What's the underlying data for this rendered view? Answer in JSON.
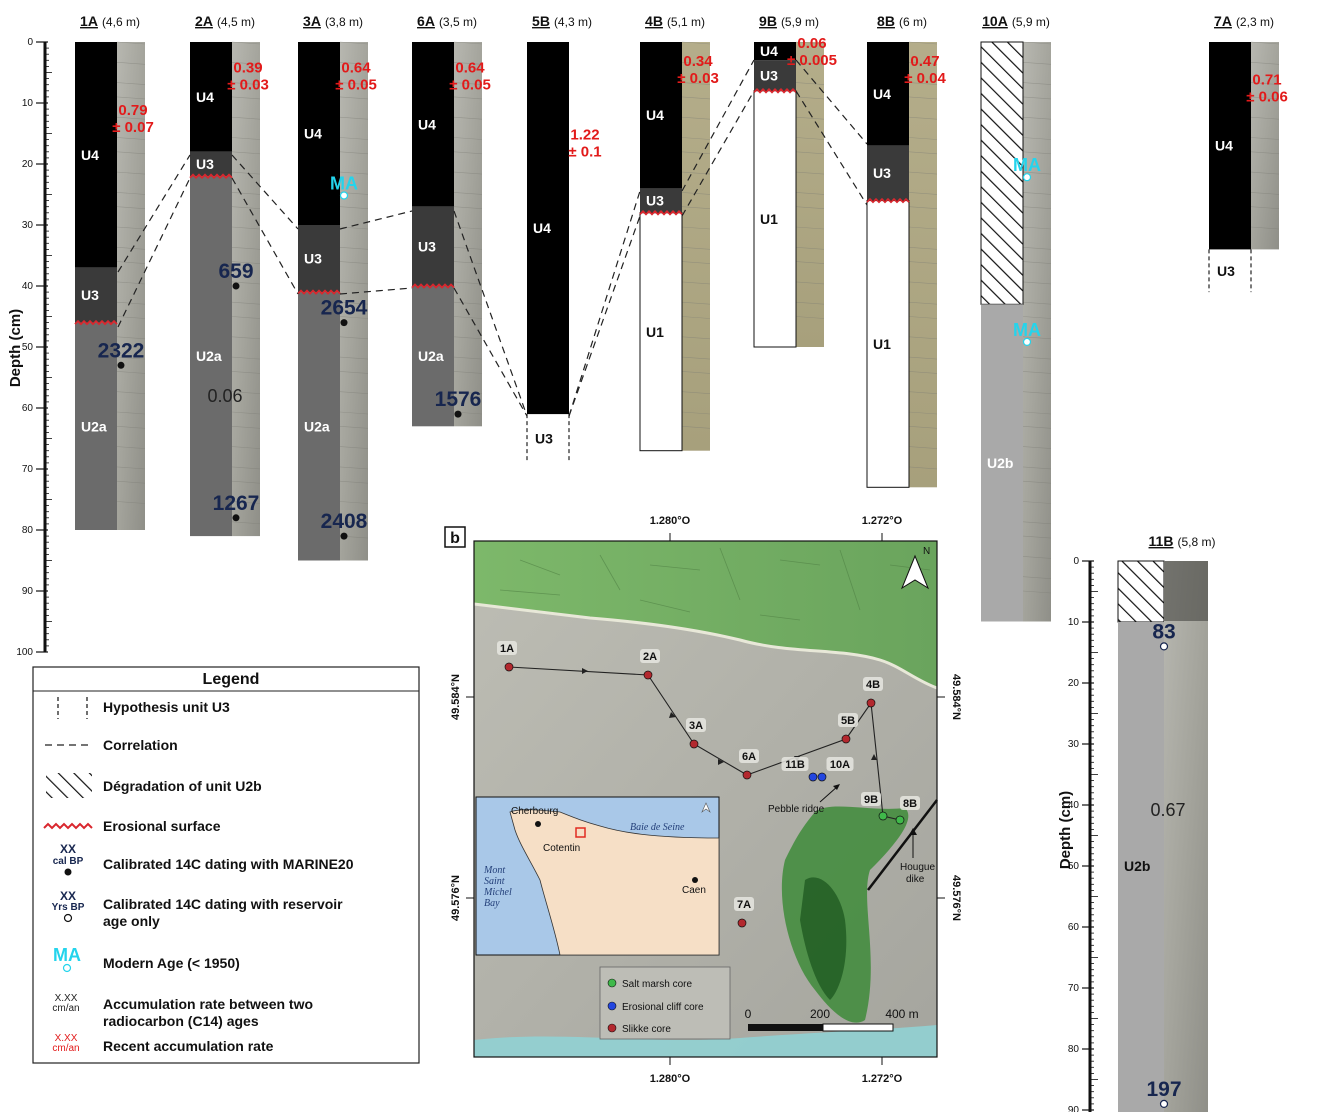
{
  "panel_b_label": "b",
  "colors": {
    "u4": "#000000",
    "u3": "#3a3a3a",
    "u2a": "#6b6b6b",
    "u2b": "#a9a9a9",
    "u1": "#ffffff",
    "erosion": "#d9272e",
    "rate_red": "#e21a1a",
    "age_navy": "#17264f",
    "modern": "#24d4ec"
  },
  "main_axis": {
    "title": "Depth (cm)",
    "ticks": [
      "0",
      "10",
      "20",
      "30",
      "40",
      "50",
      "60",
      "70",
      "80",
      "90",
      "100"
    ]
  },
  "cores": [
    {
      "id": "1A",
      "length": "(4,6 m)",
      "col_x": 75,
      "photo": true,
      "units": [
        [
          "U4",
          0,
          37
        ],
        [
          "U3",
          37,
          46
        ],
        [
          "U2a",
          46,
          80
        ]
      ],
      "erosion": 46,
      "rates": [
        {
          "text": [
            "0.79",
            "± 0.07"
          ],
          "d": 10
        }
      ],
      "ages": [
        {
          "text": "2322",
          "d": 53
        }
      ]
    },
    {
      "id": "2A",
      "length": "(4,5 m)",
      "col_x": 190,
      "photo": true,
      "units": [
        [
          "U4",
          0,
          18
        ],
        [
          "U3",
          18,
          22
        ],
        [
          "U2a",
          22,
          81
        ]
      ],
      "erosion": 22,
      "rates": [
        {
          "text": [
            "0.39",
            "± 0.03"
          ],
          "d": 3
        }
      ],
      "black_rates": [
        {
          "text": "0.06",
          "d": 59
        }
      ],
      "ages": [
        {
          "text": "659",
          "d": 40
        },
        {
          "text": "1267",
          "d": 78
        }
      ]
    },
    {
      "id": "3A",
      "length": "(3,8 m)",
      "col_x": 298,
      "photo": true,
      "units": [
        [
          "U4",
          0,
          30
        ],
        [
          "U3",
          30,
          41
        ],
        [
          "U2a",
          41,
          85
        ]
      ],
      "erosion": 41,
      "rates": [
        {
          "text": [
            "0.64",
            "± 0.05"
          ],
          "d": 3
        }
      ],
      "modern": [
        {
          "d": 25
        }
      ],
      "ages": [
        {
          "text": "2654",
          "d": 46
        },
        {
          "text": "2408",
          "d": 81
        }
      ]
    },
    {
      "id": "6A",
      "length": "(3,5 m)",
      "col_x": 412,
      "photo": true,
      "units": [
        [
          "U4",
          0,
          27
        ],
        [
          "U3",
          27,
          40
        ],
        [
          "U2a",
          40,
          63
        ]
      ],
      "erosion": 40,
      "rates": [
        {
          "text": [
            "0.64",
            "± 0.05"
          ],
          "d": 3
        }
      ],
      "ages": [
        {
          "text": "1576",
          "d": 61
        }
      ]
    },
    {
      "id": "5B",
      "length": "(4,3 m)",
      "col_x": 527,
      "photo": false,
      "units": [
        [
          "U4",
          0,
          61
        ]
      ],
      "hyp": [
        61,
        69
      ],
      "rates": [
        {
          "text": [
            "1.22",
            "± 0.1"
          ],
          "d": 14
        }
      ]
    },
    {
      "id": "4B",
      "length": "(5,1 m)",
      "col_x": 640,
      "photo": true,
      "units": [
        [
          "U4",
          0,
          24
        ],
        [
          "U3",
          24,
          28
        ],
        [
          "U1",
          28,
          67
        ]
      ],
      "erosion": 28,
      "rates": [
        {
          "text": [
            "0.34",
            "± 0.03"
          ],
          "d": 2
        }
      ]
    },
    {
      "id": "9B",
      "length": "(5,9 m)",
      "col_x": 754,
      "photo": true,
      "units": [
        [
          "U4",
          0,
          3
        ],
        [
          "U3",
          3,
          8
        ],
        [
          "U1",
          8,
          50
        ]
      ],
      "erosion": 8,
      "rates": [
        {
          "text": [
            "0.06",
            "± 0.005"
          ],
          "d": -1
        }
      ]
    },
    {
      "id": "8B",
      "length": "(6 m)",
      "col_x": 867,
      "photo": true,
      "units": [
        [
          "U4",
          0,
          17
        ],
        [
          "U3",
          17,
          26
        ],
        [
          "U1",
          26,
          73
        ]
      ],
      "erosion": 26,
      "rates": [
        {
          "text": [
            "0.47",
            "± 0.04"
          ],
          "d": 2
        }
      ]
    },
    {
      "id": "10A",
      "length": "(5,9 m)",
      "col_x": 981,
      "photo": true,
      "units": [
        [
          "hatch",
          0,
          43
        ],
        [
          "U2b",
          43,
          95
        ]
      ],
      "modern": [
        {
          "d": 22
        },
        {
          "d": 49
        }
      ]
    },
    {
      "id": "7A",
      "length": "(2,3 m)",
      "col_x": 1209,
      "photo": true,
      "units": [
        [
          "U4",
          0,
          34
        ]
      ],
      "hyp": [
        34,
        41
      ],
      "rates": [
        {
          "text": [
            "0.71",
            "± 0.06"
          ],
          "d": 5
        }
      ]
    }
  ],
  "core_11b": {
    "id": "11B",
    "length": "(5,8 m)",
    "axis_title": "Depth (cm)",
    "ticks": [
      "0",
      "10",
      "20",
      "30",
      "40",
      "50",
      "60",
      "70",
      "80",
      "90"
    ],
    "u2b_label": "U2b",
    "rate": "0.67",
    "ages": [
      "83",
      "197"
    ]
  },
  "legend": {
    "title": "Legend",
    "items": [
      "Hypothesis unit U3",
      "Correlation",
      "Dégradation of unit U2b",
      "Erosional surface",
      "Calibrated 14C dating with MARINE20",
      "Calibrated 14C dating with reservoir age only",
      "Modern Age (< 1950)",
      "Accumulation rate between two radiocarbon (C14) ages",
      "Recent accumulation rate"
    ],
    "sym_cal": [
      "XX",
      "cal BP"
    ],
    "sym_yrs": [
      "XX",
      "Yrs BP"
    ],
    "sym_ma": "MA",
    "sym_rate": [
      "X.XX",
      "cm/an"
    ]
  },
  "map": {
    "top_lon": [
      "1.280°O",
      "1.272°O"
    ],
    "bottom_lon": [
      "1.280°O",
      "1.272°O"
    ],
    "lat": [
      "49.584°N",
      "49.576°N"
    ],
    "north": "N",
    "sites": [
      {
        "label": "1A",
        "type": "slikke"
      },
      {
        "label": "2A",
        "type": "slikke"
      },
      {
        "label": "3A",
        "type": "slikke"
      },
      {
        "label": "6A",
        "type": "slikke"
      },
      {
        "label": "5B",
        "type": "slikke"
      },
      {
        "label": "4B",
        "type": "slikke"
      },
      {
        "label": "11B",
        "type": "cliff"
      },
      {
        "label": "10A",
        "type": "cliff"
      },
      {
        "label": "9B",
        "type": "marsh"
      },
      {
        "label": "8B",
        "type": "marsh"
      },
      {
        "label": "7A",
        "type": "slikke"
      }
    ],
    "annotations": [
      "Pebble ridge",
      "Hougue",
      "dike"
    ],
    "inset": [
      "Cherbourg",
      "Cotentin",
      "Baie de Seine",
      "Mont",
      "Saint",
      "Michel",
      "Bay",
      "Caen"
    ],
    "legend": [
      "Salt marsh core",
      "Erosional cliff core",
      "Slikke core"
    ],
    "scale": [
      "0",
      "200",
      "400 m"
    ]
  }
}
